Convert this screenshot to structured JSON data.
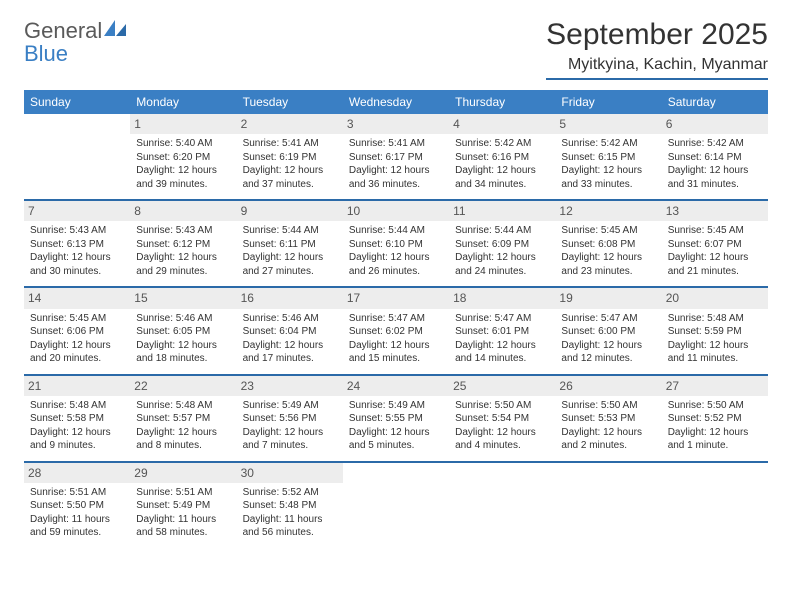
{
  "logo": {
    "word1": "General",
    "word2": "Blue"
  },
  "title": "September 2025",
  "location": "Myitkyina, Kachin, Myanmar",
  "colors": {
    "header_bg": "#3a7fc4",
    "header_text": "#ffffff",
    "rule": "#2b6aa8",
    "daynum_bg": "#ededed",
    "text": "#333333",
    "logo_gray": "#5a5a5a",
    "logo_blue": "#3a7fc4",
    "page_bg": "#ffffff"
  },
  "day_names": [
    "Sunday",
    "Monday",
    "Tuesday",
    "Wednesday",
    "Thursday",
    "Friday",
    "Saturday"
  ],
  "weeks": [
    [
      {
        "n": "",
        "sr": "",
        "ss": "",
        "dl": ""
      },
      {
        "n": "1",
        "sr": "Sunrise: 5:40 AM",
        "ss": "Sunset: 6:20 PM",
        "dl": "Daylight: 12 hours and 39 minutes."
      },
      {
        "n": "2",
        "sr": "Sunrise: 5:41 AM",
        "ss": "Sunset: 6:19 PM",
        "dl": "Daylight: 12 hours and 37 minutes."
      },
      {
        "n": "3",
        "sr": "Sunrise: 5:41 AM",
        "ss": "Sunset: 6:17 PM",
        "dl": "Daylight: 12 hours and 36 minutes."
      },
      {
        "n": "4",
        "sr": "Sunrise: 5:42 AM",
        "ss": "Sunset: 6:16 PM",
        "dl": "Daylight: 12 hours and 34 minutes."
      },
      {
        "n": "5",
        "sr": "Sunrise: 5:42 AM",
        "ss": "Sunset: 6:15 PM",
        "dl": "Daylight: 12 hours and 33 minutes."
      },
      {
        "n": "6",
        "sr": "Sunrise: 5:42 AM",
        "ss": "Sunset: 6:14 PM",
        "dl": "Daylight: 12 hours and 31 minutes."
      }
    ],
    [
      {
        "n": "7",
        "sr": "Sunrise: 5:43 AM",
        "ss": "Sunset: 6:13 PM",
        "dl": "Daylight: 12 hours and 30 minutes."
      },
      {
        "n": "8",
        "sr": "Sunrise: 5:43 AM",
        "ss": "Sunset: 6:12 PM",
        "dl": "Daylight: 12 hours and 29 minutes."
      },
      {
        "n": "9",
        "sr": "Sunrise: 5:44 AM",
        "ss": "Sunset: 6:11 PM",
        "dl": "Daylight: 12 hours and 27 minutes."
      },
      {
        "n": "10",
        "sr": "Sunrise: 5:44 AM",
        "ss": "Sunset: 6:10 PM",
        "dl": "Daylight: 12 hours and 26 minutes."
      },
      {
        "n": "11",
        "sr": "Sunrise: 5:44 AM",
        "ss": "Sunset: 6:09 PM",
        "dl": "Daylight: 12 hours and 24 minutes."
      },
      {
        "n": "12",
        "sr": "Sunrise: 5:45 AM",
        "ss": "Sunset: 6:08 PM",
        "dl": "Daylight: 12 hours and 23 minutes."
      },
      {
        "n": "13",
        "sr": "Sunrise: 5:45 AM",
        "ss": "Sunset: 6:07 PM",
        "dl": "Daylight: 12 hours and 21 minutes."
      }
    ],
    [
      {
        "n": "14",
        "sr": "Sunrise: 5:45 AM",
        "ss": "Sunset: 6:06 PM",
        "dl": "Daylight: 12 hours and 20 minutes."
      },
      {
        "n": "15",
        "sr": "Sunrise: 5:46 AM",
        "ss": "Sunset: 6:05 PM",
        "dl": "Daylight: 12 hours and 18 minutes."
      },
      {
        "n": "16",
        "sr": "Sunrise: 5:46 AM",
        "ss": "Sunset: 6:04 PM",
        "dl": "Daylight: 12 hours and 17 minutes."
      },
      {
        "n": "17",
        "sr": "Sunrise: 5:47 AM",
        "ss": "Sunset: 6:02 PM",
        "dl": "Daylight: 12 hours and 15 minutes."
      },
      {
        "n": "18",
        "sr": "Sunrise: 5:47 AM",
        "ss": "Sunset: 6:01 PM",
        "dl": "Daylight: 12 hours and 14 minutes."
      },
      {
        "n": "19",
        "sr": "Sunrise: 5:47 AM",
        "ss": "Sunset: 6:00 PM",
        "dl": "Daylight: 12 hours and 12 minutes."
      },
      {
        "n": "20",
        "sr": "Sunrise: 5:48 AM",
        "ss": "Sunset: 5:59 PM",
        "dl": "Daylight: 12 hours and 11 minutes."
      }
    ],
    [
      {
        "n": "21",
        "sr": "Sunrise: 5:48 AM",
        "ss": "Sunset: 5:58 PM",
        "dl": "Daylight: 12 hours and 9 minutes."
      },
      {
        "n": "22",
        "sr": "Sunrise: 5:48 AM",
        "ss": "Sunset: 5:57 PM",
        "dl": "Daylight: 12 hours and 8 minutes."
      },
      {
        "n": "23",
        "sr": "Sunrise: 5:49 AM",
        "ss": "Sunset: 5:56 PM",
        "dl": "Daylight: 12 hours and 7 minutes."
      },
      {
        "n": "24",
        "sr": "Sunrise: 5:49 AM",
        "ss": "Sunset: 5:55 PM",
        "dl": "Daylight: 12 hours and 5 minutes."
      },
      {
        "n": "25",
        "sr": "Sunrise: 5:50 AM",
        "ss": "Sunset: 5:54 PM",
        "dl": "Daylight: 12 hours and 4 minutes."
      },
      {
        "n": "26",
        "sr": "Sunrise: 5:50 AM",
        "ss": "Sunset: 5:53 PM",
        "dl": "Daylight: 12 hours and 2 minutes."
      },
      {
        "n": "27",
        "sr": "Sunrise: 5:50 AM",
        "ss": "Sunset: 5:52 PM",
        "dl": "Daylight: 12 hours and 1 minute."
      }
    ],
    [
      {
        "n": "28",
        "sr": "Sunrise: 5:51 AM",
        "ss": "Sunset: 5:50 PM",
        "dl": "Daylight: 11 hours and 59 minutes."
      },
      {
        "n": "29",
        "sr": "Sunrise: 5:51 AM",
        "ss": "Sunset: 5:49 PM",
        "dl": "Daylight: 11 hours and 58 minutes."
      },
      {
        "n": "30",
        "sr": "Sunrise: 5:52 AM",
        "ss": "Sunset: 5:48 PM",
        "dl": "Daylight: 11 hours and 56 minutes."
      },
      {
        "n": "",
        "sr": "",
        "ss": "",
        "dl": ""
      },
      {
        "n": "",
        "sr": "",
        "ss": "",
        "dl": ""
      },
      {
        "n": "",
        "sr": "",
        "ss": "",
        "dl": ""
      },
      {
        "n": "",
        "sr": "",
        "ss": "",
        "dl": ""
      }
    ]
  ]
}
